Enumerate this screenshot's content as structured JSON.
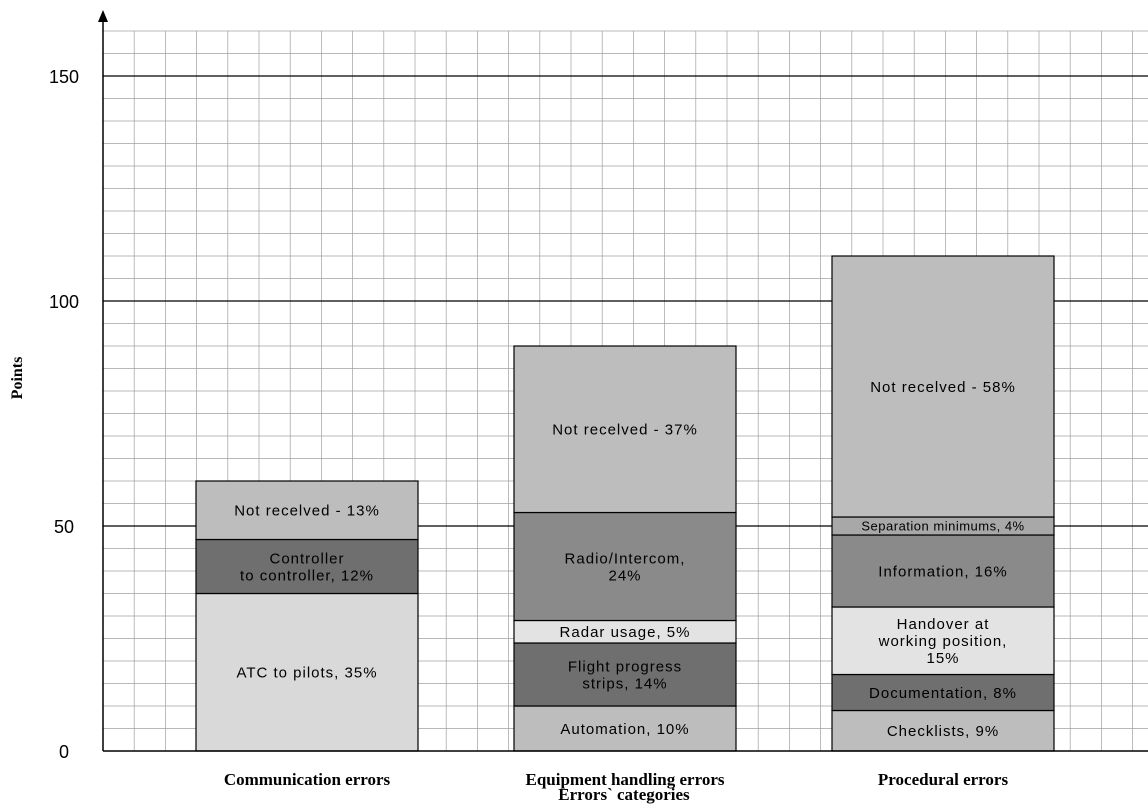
{
  "chart_data": {
    "type": "bar",
    "stacked": true,
    "title": "",
    "xlabel": "Errors` categories",
    "ylabel": "Points",
    "ylim": [
      0,
      160
    ],
    "yticks": [
      0,
      50,
      100,
      150
    ],
    "grid": true,
    "categories": [
      "Communication errors",
      "Equipment handling errors",
      "Procedural errors"
    ],
    "bars": [
      {
        "category": "Communication errors",
        "segments": [
          {
            "label": "ATC to pilots, 35%",
            "value": 35,
            "color": "#d9d9d9"
          },
          {
            "label": "Controller to controller, 12%",
            "lines": [
              "Controller",
              "to controller, 12%"
            ],
            "value": 12,
            "color": "#6f6f6f"
          },
          {
            "label": "Not recelved - 13%",
            "value": 13,
            "color": "#bdbdbd"
          }
        ]
      },
      {
        "category": "Equipment handling errors",
        "segments": [
          {
            "label": "Automation, 10%",
            "value": 10,
            "color": "#bdbdbd"
          },
          {
            "label": "Flight progress strips, 14%",
            "lines": [
              "Flight progress",
              "strips, 14%"
            ],
            "value": 14,
            "color": "#6f6f6f"
          },
          {
            "label": "Radar usage, 5%",
            "value": 5,
            "color": "#e3e3e3"
          },
          {
            "label": "Radio/Intercom, 24%",
            "lines": [
              "Radio/Intercom,",
              "24%"
            ],
            "value": 24,
            "color": "#8a8a8a"
          },
          {
            "label": "Not recelved - 37%",
            "value": 37,
            "color": "#bdbdbd"
          }
        ]
      },
      {
        "category": "Procedural errors",
        "segments": [
          {
            "label": "Checklists, 9%",
            "value": 9,
            "color": "#bdbdbd"
          },
          {
            "label": "Documentation, 8%",
            "value": 8,
            "color": "#6f6f6f"
          },
          {
            "label": "Handover at working position, 15%",
            "lines": [
              "Handover at",
              "working position,",
              "15%"
            ],
            "value": 15,
            "color": "#e3e3e3"
          },
          {
            "label": "Information, 16%",
            "value": 16,
            "color": "#8a8a8a"
          },
          {
            "label": "Separation minimums, 4%",
            "value": 4,
            "color": "#a8a8a8",
            "small": true
          },
          {
            "label": "Not recelved - 58%",
            "value": 58,
            "color": "#bdbdbd"
          }
        ]
      }
    ]
  }
}
